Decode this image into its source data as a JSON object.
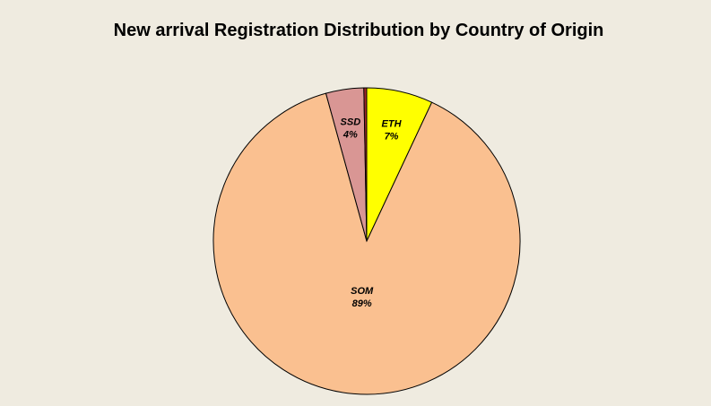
{
  "chart_data": {
    "type": "pie",
    "title": "New arrival Registration Distribution by Country of Origin",
    "categories": [
      "ETH",
      "SOM",
      "SSD",
      null
    ],
    "values": [
      7,
      89,
      4,
      0.3
    ],
    "value_labels": [
      "7%",
      "89%",
      "4%",
      null
    ],
    "colors": [
      "#ffff00",
      "#fac090",
      "#d99694",
      "#a0282a"
    ]
  }
}
